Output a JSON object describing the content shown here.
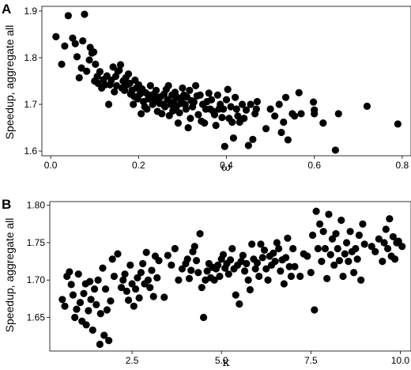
{
  "chart_data": [
    {
      "type": "scatter",
      "panel": "A",
      "xlabel": "ω",
      "ylabel": "Speedup, aggregate all",
      "xlim": [
        -0.02,
        0.82
      ],
      "ylim": [
        1.59,
        1.91
      ],
      "xticks": [
        0,
        0.2,
        0.4,
        0.6,
        0.8
      ],
      "xtick_labels": [
        "0.0",
        "0.2",
        "0.4",
        "0.6",
        "0.8"
      ],
      "yticks": [
        1.6,
        1.7,
        1.8,
        1.9
      ],
      "ytick_labels": [
        "1.6",
        "1.7",
        "1.8",
        "1.9"
      ],
      "grid": false,
      "points": [
        [
          0.012,
          1.845
        ],
        [
          0.025,
          1.786
        ],
        [
          0.032,
          1.825
        ],
        [
          0.04,
          1.89
        ],
        [
          0.05,
          1.842
        ],
        [
          0.056,
          1.83
        ],
        [
          0.06,
          1.802
        ],
        [
          0.065,
          1.757
        ],
        [
          0.07,
          1.778
        ],
        [
          0.073,
          1.836
        ],
        [
          0.077,
          1.893
        ],
        [
          0.082,
          1.771
        ],
        [
          0.088,
          1.795
        ],
        [
          0.09,
          1.822
        ],
        [
          0.094,
          1.81
        ],
        [
          0.098,
          1.812
        ],
        [
          0.1,
          1.75
        ],
        [
          0.102,
          1.786
        ],
        [
          0.106,
          1.76
        ],
        [
          0.108,
          1.745
        ],
        [
          0.112,
          1.77
        ],
        [
          0.116,
          1.735
        ],
        [
          0.12,
          1.753
        ],
        [
          0.124,
          1.742
        ],
        [
          0.128,
          1.761
        ],
        [
          0.132,
          1.7
        ],
        [
          0.135,
          1.742
        ],
        [
          0.138,
          1.752
        ],
        [
          0.142,
          1.78
        ],
        [
          0.145,
          1.727
        ],
        [
          0.148,
          1.76
        ],
        [
          0.15,
          1.74
        ],
        [
          0.153,
          1.771
        ],
        [
          0.156,
          1.773
        ],
        [
          0.159,
          1.785
        ],
        [
          0.162,
          1.735
        ],
        [
          0.165,
          1.75
        ],
        [
          0.168,
          1.73
        ],
        [
          0.171,
          1.757
        ],
        [
          0.174,
          1.742
        ],
        [
          0.177,
          1.765
        ],
        [
          0.18,
          1.745
        ],
        [
          0.182,
          1.722
        ],
        [
          0.185,
          1.73
        ],
        [
          0.188,
          1.7
        ],
        [
          0.19,
          1.717
        ],
        [
          0.192,
          1.752
        ],
        [
          0.195,
          1.735
        ],
        [
          0.198,
          1.712
        ],
        [
          0.2,
          1.742
        ],
        [
          0.203,
          1.722
        ],
        [
          0.206,
          1.68
        ],
        [
          0.208,
          1.733
        ],
        [
          0.211,
          1.706
        ],
        [
          0.214,
          1.695
        ],
        [
          0.216,
          1.725
        ],
        [
          0.219,
          1.69
        ],
        [
          0.222,
          1.712
        ],
        [
          0.224,
          1.72
        ],
        [
          0.227,
          1.74
        ],
        [
          0.23,
          1.715
        ],
        [
          0.232,
          1.7
        ],
        [
          0.235,
          1.722
        ],
        [
          0.238,
          1.708
        ],
        [
          0.24,
          1.73
        ],
        [
          0.243,
          1.685
        ],
        [
          0.245,
          1.715
        ],
        [
          0.248,
          1.702
        ],
        [
          0.25,
          1.716
        ],
        [
          0.253,
          1.68
        ],
        [
          0.256,
          1.7
        ],
        [
          0.258,
          1.722
        ],
        [
          0.26,
          1.695
        ],
        [
          0.263,
          1.732
        ],
        [
          0.266,
          1.71
        ],
        [
          0.268,
          1.74
        ],
        [
          0.27,
          1.676
        ],
        [
          0.273,
          1.7
        ],
        [
          0.276,
          1.72
        ],
        [
          0.278,
          1.686
        ],
        [
          0.28,
          1.705
        ],
        [
          0.283,
          1.726
        ],
        [
          0.286,
          1.695
        ],
        [
          0.288,
          1.715
        ],
        [
          0.29,
          1.66
        ],
        [
          0.293,
          1.682
        ],
        [
          0.296,
          1.702
        ],
        [
          0.298,
          1.712
        ],
        [
          0.3,
          1.735
        ],
        [
          0.303,
          1.72
        ],
        [
          0.306,
          1.7
        ],
        [
          0.308,
          1.69
        ],
        [
          0.31,
          1.716
        ],
        [
          0.313,
          1.65
        ],
        [
          0.316,
          1.73
        ],
        [
          0.318,
          1.67
        ],
        [
          0.32,
          1.708
        ],
        [
          0.323,
          1.695
        ],
        [
          0.326,
          1.705
        ],
        [
          0.33,
          1.74
        ],
        [
          0.333,
          1.718
        ],
        [
          0.336,
          1.678
        ],
        [
          0.34,
          1.72
        ],
        [
          0.343,
          1.664
        ],
        [
          0.346,
          1.7
        ],
        [
          0.35,
          1.66
        ],
        [
          0.353,
          1.69
        ],
        [
          0.356,
          1.706
        ],
        [
          0.36,
          1.724
        ],
        [
          0.363,
          1.69
        ],
        [
          0.366,
          1.71
        ],
        [
          0.37,
          1.685
        ],
        [
          0.373,
          1.678
        ],
        [
          0.376,
          1.655
        ],
        [
          0.38,
          1.72
        ],
        [
          0.383,
          1.69
        ],
        [
          0.386,
          1.7
        ],
        [
          0.39,
          1.672
        ],
        [
          0.393,
          1.69
        ],
        [
          0.396,
          1.61
        ],
        [
          0.4,
          1.71
        ],
        [
          0.403,
          1.732
        ],
        [
          0.406,
          1.67
        ],
        [
          0.41,
          1.695
        ],
        [
          0.413,
          1.662
        ],
        [
          0.416,
          1.628
        ],
        [
          0.42,
          1.715
        ],
        [
          0.423,
          1.69
        ],
        [
          0.426,
          1.675
        ],
        [
          0.43,
          1.662
        ],
        [
          0.436,
          1.7
        ],
        [
          0.44,
          1.67
        ],
        [
          0.445,
          1.688
        ],
        [
          0.45,
          1.612
        ],
        [
          0.455,
          1.7
        ],
        [
          0.46,
          1.625
        ],
        [
          0.465,
          1.68
        ],
        [
          0.468,
          1.69
        ],
        [
          0.47,
          1.706
        ],
        [
          0.49,
          1.648
        ],
        [
          0.5,
          1.69
        ],
        [
          0.51,
          1.675
        ],
        [
          0.52,
          1.7
        ],
        [
          0.525,
          1.64
        ],
        [
          0.53,
          1.662
        ],
        [
          0.535,
          1.715
        ],
        [
          0.54,
          1.624
        ],
        [
          0.55,
          1.68
        ],
        [
          0.555,
          1.675
        ],
        [
          0.565,
          1.725
        ],
        [
          0.57,
          1.68
        ],
        [
          0.598,
          1.705
        ],
        [
          0.6,
          1.68
        ],
        [
          0.6,
          1.688
        ],
        [
          0.62,
          1.66
        ],
        [
          0.648,
          1.602
        ],
        [
          0.655,
          1.68
        ],
        [
          0.72,
          1.696
        ],
        [
          0.79,
          1.658
        ]
      ]
    },
    {
      "type": "scatter",
      "panel": "B",
      "xlabel": "κ",
      "ylabel": "Speedup, aggregate all",
      "xlim": [
        0.2,
        10.3
      ],
      "ylim": [
        1.605,
        1.805
      ],
      "xticks": [
        2.5,
        5.0,
        7.5,
        10.0
      ],
      "xtick_labels": [
        "2.5",
        "5.0",
        "7.5",
        "10.0"
      ],
      "yticks": [
        1.65,
        1.7,
        1.75,
        1.8
      ],
      "ytick_labels": [
        "1.65",
        "1.70",
        "1.75",
        "1.80"
      ],
      "grid": false,
      "points": [
        [
          0.55,
          1.674
        ],
        [
          0.62,
          1.665
        ],
        [
          0.68,
          1.705
        ],
        [
          0.75,
          1.711
        ],
        [
          0.8,
          1.694
        ],
        [
          0.85,
          1.68
        ],
        [
          0.9,
          1.65
        ],
        [
          0.95,
          1.661
        ],
        [
          1.0,
          1.708
        ],
        [
          1.05,
          1.67
        ],
        [
          1.1,
          1.645
        ],
        [
          1.15,
          1.682
        ],
        [
          1.2,
          1.695
        ],
        [
          1.22,
          1.64
        ],
        [
          1.28,
          1.659
        ],
        [
          1.32,
          1.698
        ],
        [
          1.35,
          1.674
        ],
        [
          1.4,
          1.633
        ],
        [
          1.45,
          1.688
        ],
        [
          1.5,
          1.667
        ],
        [
          1.55,
          1.7
        ],
        [
          1.6,
          1.614
        ],
        [
          1.62,
          1.655
        ],
        [
          1.68,
          1.716
        ],
        [
          1.72,
          1.626
        ],
        [
          1.76,
          1.688
        ],
        [
          1.8,
          1.66
        ],
        [
          1.85,
          1.619
        ],
        [
          1.9,
          1.672
        ],
        [
          1.95,
          1.728
        ],
        [
          2.0,
          1.705
        ],
        [
          2.1,
          1.735
        ],
        [
          2.2,
          1.69
        ],
        [
          2.25,
          1.7
        ],
        [
          2.3,
          1.708
        ],
        [
          2.35,
          1.685
        ],
        [
          2.4,
          1.673
        ],
        [
          2.45,
          1.72
        ],
        [
          2.5,
          1.695
        ],
        [
          2.55,
          1.665
        ],
        [
          2.6,
          1.688
        ],
        [
          2.65,
          1.703
        ],
        [
          2.7,
          1.676
        ],
        [
          2.75,
          1.71
        ],
        [
          2.8,
          1.722
        ],
        [
          2.85,
          1.695
        ],
        [
          2.9,
          1.737
        ],
        [
          2.95,
          1.7
        ],
        [
          3.0,
          1.69
        ],
        [
          3.05,
          1.713
        ],
        [
          3.1,
          1.678
        ],
        [
          3.15,
          1.732
        ],
        [
          3.2,
          1.703
        ],
        [
          3.25,
          1.726
        ],
        [
          3.4,
          1.677
        ],
        [
          3.5,
          1.733
        ],
        [
          3.6,
          1.72
        ],
        [
          3.7,
          1.742
        ],
        [
          3.8,
          1.7
        ],
        [
          3.9,
          1.715
        ],
        [
          4.0,
          1.722
        ],
        [
          4.05,
          1.728
        ],
        [
          4.1,
          1.702
        ],
        [
          4.15,
          1.713
        ],
        [
          4.2,
          1.738
        ],
        [
          4.25,
          1.745
        ],
        [
          4.3,
          1.726
        ],
        [
          4.35,
          1.71
        ],
        [
          4.4,
          1.762
        ],
        [
          4.45,
          1.69
        ],
        [
          4.5,
          1.65
        ],
        [
          4.55,
          1.7
        ],
        [
          4.6,
          1.712
        ],
        [
          4.65,
          1.722
        ],
        [
          4.7,
          1.703
        ],
        [
          4.75,
          1.717
        ],
        [
          4.8,
          1.7
        ],
        [
          4.85,
          1.715
        ],
        [
          4.9,
          1.72
        ],
        [
          4.95,
          1.705
        ],
        [
          5.0,
          1.728
        ],
        [
          5.05,
          1.734
        ],
        [
          5.1,
          1.716
        ],
        [
          5.15,
          1.722
        ],
        [
          5.2,
          1.708
        ],
        [
          5.25,
          1.727
        ],
        [
          5.3,
          1.742
        ],
        [
          5.35,
          1.715
        ],
        [
          5.4,
          1.68
        ],
        [
          5.45,
          1.72
        ],
        [
          5.5,
          1.668
        ],
        [
          5.55,
          1.725
        ],
        [
          5.6,
          1.733
        ],
        [
          5.65,
          1.712
        ],
        [
          5.7,
          1.722
        ],
        [
          5.75,
          1.7
        ],
        [
          5.8,
          1.687
        ],
        [
          5.85,
          1.748
        ],
        [
          5.9,
          1.728
        ],
        [
          5.95,
          1.715
        ],
        [
          6.0,
          1.723
        ],
        [
          6.05,
          1.705
        ],
        [
          6.1,
          1.748
        ],
        [
          6.15,
          1.73
        ],
        [
          6.2,
          1.74
        ],
        [
          6.25,
          1.715
        ],
        [
          6.3,
          1.7
        ],
        [
          6.35,
          1.732
        ],
        [
          6.4,
          1.72
        ],
        [
          6.45,
          1.736
        ],
        [
          6.5,
          1.725
        ],
        [
          6.55,
          1.75
        ],
        [
          6.6,
          1.742
        ],
        [
          6.65,
          1.712
        ],
        [
          6.7,
          1.727
        ],
        [
          6.75,
          1.695
        ],
        [
          6.8,
          1.73
        ],
        [
          6.85,
          1.756
        ],
        [
          6.9,
          1.718
        ],
        [
          6.95,
          1.705
        ],
        [
          7.0,
          1.742
        ],
        [
          7.05,
          1.718
        ],
        [
          7.2,
          1.705
        ],
        [
          7.3,
          1.735
        ],
        [
          7.4,
          1.732
        ],
        [
          7.5,
          1.71
        ],
        [
          7.55,
          1.76
        ],
        [
          7.6,
          1.66
        ],
        [
          7.65,
          1.792
        ],
        [
          7.7,
          1.742
        ],
        [
          7.75,
          1.775
        ],
        [
          7.8,
          1.725
        ],
        [
          7.85,
          1.765
        ],
        [
          7.9,
          1.742
        ],
        [
          7.95,
          1.702
        ],
        [
          8.0,
          1.788
        ],
        [
          8.05,
          1.734
        ],
        [
          8.1,
          1.755
        ],
        [
          8.15,
          1.72
        ],
        [
          8.2,
          1.762
        ],
        [
          8.25,
          1.742
        ],
        [
          8.3,
          1.726
        ],
        [
          8.35,
          1.78
        ],
        [
          8.4,
          1.705
        ],
        [
          8.45,
          1.735
        ],
        [
          8.5,
          1.75
        ],
        [
          8.55,
          1.725
        ],
        [
          8.6,
          1.765
        ],
        [
          8.65,
          1.738
        ],
        [
          8.7,
          1.71
        ],
        [
          8.75,
          1.742
        ],
        [
          8.8,
          1.728
        ],
        [
          8.85,
          1.76
        ],
        [
          8.9,
          1.7
        ],
        [
          8.95,
          1.775
        ],
        [
          9.0,
          1.748
        ],
        [
          9.2,
          1.745
        ],
        [
          9.3,
          1.738
        ],
        [
          9.4,
          1.755
        ],
        [
          9.5,
          1.725
        ],
        [
          9.55,
          1.75
        ],
        [
          9.6,
          1.768
        ],
        [
          9.65,
          1.742
        ],
        [
          9.7,
          1.782
        ],
        [
          9.75,
          1.732
        ],
        [
          9.8,
          1.758
        ],
        [
          9.85,
          1.728
        ],
        [
          9.9,
          1.75
        ],
        [
          9.95,
          1.752
        ],
        [
          10.05,
          1.745
        ]
      ]
    }
  ]
}
